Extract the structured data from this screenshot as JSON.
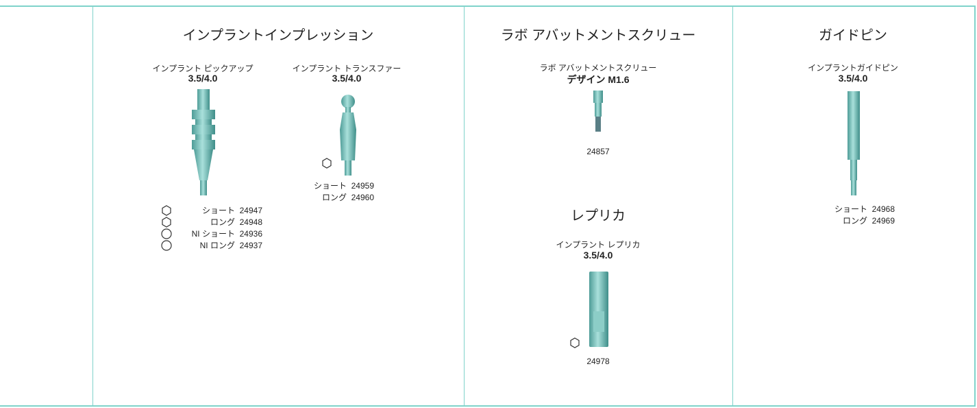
{
  "sections": [
    {
      "title": "インプラントインプレッション",
      "products": [
        {
          "name": "インプラント ピックアップ",
          "size": "3.5/4.0",
          "variants": [
            {
              "label": "ショート",
              "code": "24947"
            },
            {
              "label": "ロング",
              "code": "24948"
            },
            {
              "label": "NI ショート",
              "code": "24936"
            },
            {
              "label": "NI ロング",
              "code": "24937"
            }
          ]
        },
        {
          "name": "インプラント トランスファー",
          "size": "3.5/4.0",
          "variants": [
            {
              "label": "ショート",
              "code": "24959"
            },
            {
              "label": "ロング",
              "code": "24960"
            }
          ]
        }
      ]
    },
    {
      "title": "ラボ アバットメントスクリュー",
      "products": [
        {
          "name": "ラボ アバットメントスクリュー",
          "size": "デザイン M1.6",
          "variants": [
            {
              "code": "24857"
            }
          ]
        }
      ]
    },
    {
      "title": "レプリカ",
      "products": [
        {
          "name": "インプラント レプリカ",
          "size": "3.5/4.0",
          "variants": [
            {
              "code": "24978"
            }
          ]
        }
      ]
    },
    {
      "title": "ガイドピン",
      "products": [
        {
          "name": "インプラントガイドピン",
          "size": "3.5/4.0",
          "variants": [
            {
              "label": "ショート",
              "code": "24968"
            },
            {
              "label": "ロング",
              "code": "24969"
            }
          ]
        }
      ]
    }
  ]
}
